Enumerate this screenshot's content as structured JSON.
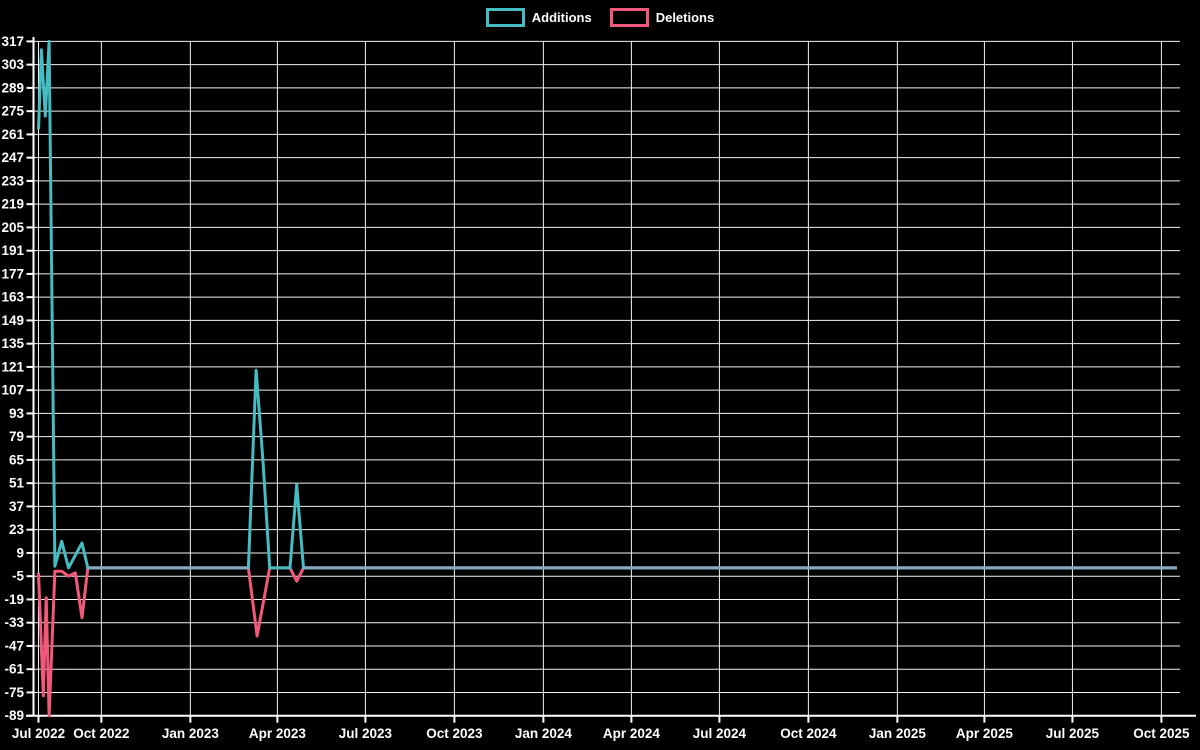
{
  "legend": [
    {
      "label": "Additions",
      "color": "#45bcc2"
    },
    {
      "label": "Deletions",
      "color": "#f2587a"
    }
  ],
  "colors": {
    "background": "#000000",
    "grid": "#f2f2f2",
    "axis": "#ffffff",
    "text": "#ffffff",
    "additions": "#45bcc2",
    "deletions": "#f2587a",
    "overlap_line": "#86a8c0"
  },
  "chart_data": {
    "type": "line",
    "title": "",
    "xlabel": "",
    "ylabel": "",
    "grid": true,
    "legend_position": "top",
    "y_axis": {
      "min": -89,
      "max": 317,
      "tick_step": 14,
      "tick_labels": [
        "317",
        "303",
        "289",
        "275",
        "261",
        "247",
        "233",
        "219",
        "205",
        "191",
        "177",
        "163",
        "149",
        "135",
        "121",
        "107",
        "93",
        "79",
        "65",
        "51",
        "37",
        "23",
        "9",
        "-5",
        "-19",
        "-33",
        "-47",
        "-61",
        "-75",
        "-89"
      ]
    },
    "x_axis": {
      "ticks": [
        {
          "date": "2022-07-28",
          "label": "Jul 2022"
        },
        {
          "date": "2022-10-01",
          "label": "Oct 2022"
        },
        {
          "date": "2023-01-01",
          "label": "Jan 2023"
        },
        {
          "date": "2023-04-01",
          "label": "Apr 2023"
        },
        {
          "date": "2023-07-01",
          "label": "Jul 2023"
        },
        {
          "date": "2023-10-01",
          "label": "Oct 2023"
        },
        {
          "date": "2024-01-01",
          "label": "Jan 2024"
        },
        {
          "date": "2024-04-01",
          "label": "Apr 2024"
        },
        {
          "date": "2024-07-01",
          "label": "Jul 2024"
        },
        {
          "date": "2024-10-01",
          "label": "Oct 2024"
        },
        {
          "date": "2025-01-01",
          "label": "Jan 2025"
        },
        {
          "date": "2025-04-01",
          "label": "Apr 2025"
        },
        {
          "date": "2025-07-01",
          "label": "Jul 2025"
        },
        {
          "date": "2025-10-01",
          "label": "Oct 2025"
        }
      ]
    },
    "series": [
      {
        "name": "Additions",
        "color": "#45bcc2",
        "points": [
          {
            "date": "2022-07-28",
            "v": 264
          },
          {
            "date": "2022-07-31",
            "v": 312
          },
          {
            "date": "2022-08-04",
            "v": 272
          },
          {
            "date": "2022-08-08",
            "v": 317
          },
          {
            "date": "2022-08-14",
            "v": 1
          },
          {
            "date": "2022-08-21",
            "v": 16
          },
          {
            "date": "2022-08-28",
            "v": 0
          },
          {
            "date": "2022-09-11",
            "v": 15
          },
          {
            "date": "2022-09-17",
            "v": 0
          },
          {
            "date": "2023-03-02",
            "v": 0
          },
          {
            "date": "2023-03-10",
            "v": 119
          },
          {
            "date": "2023-03-17",
            "v": 65
          },
          {
            "date": "2023-03-24",
            "v": 0
          },
          {
            "date": "2023-04-14",
            "v": 0
          },
          {
            "date": "2023-04-21",
            "v": 50
          },
          {
            "date": "2023-04-28",
            "v": 0
          },
          {
            "date": "2025-10-17",
            "v": 0
          }
        ]
      },
      {
        "name": "Deletions",
        "color": "#f2587a",
        "points": [
          {
            "date": "2022-07-28",
            "v": -3
          },
          {
            "date": "2022-08-02",
            "v": -77
          },
          {
            "date": "2022-08-05",
            "v": -18
          },
          {
            "date": "2022-08-08",
            "v": -89
          },
          {
            "date": "2022-08-14",
            "v": -2
          },
          {
            "date": "2022-08-21",
            "v": -2
          },
          {
            "date": "2022-08-28",
            "v": -5
          },
          {
            "date": "2022-09-04",
            "v": -3
          },
          {
            "date": "2022-09-11",
            "v": -30
          },
          {
            "date": "2022-09-17",
            "v": 0
          },
          {
            "date": "2023-03-02",
            "v": 0
          },
          {
            "date": "2023-03-11",
            "v": -41
          },
          {
            "date": "2023-03-24",
            "v": 0
          },
          {
            "date": "2023-04-14",
            "v": 0
          },
          {
            "date": "2023-04-21",
            "v": -8
          },
          {
            "date": "2023-04-28",
            "v": 0
          },
          {
            "date": "2025-10-17",
            "v": 0
          }
        ]
      }
    ],
    "overlap_segments": [
      {
        "from": "2022-09-17",
        "to": "2023-03-02",
        "v": 0
      },
      {
        "from": "2023-04-28",
        "to": "2025-10-17",
        "v": 0
      }
    ]
  }
}
